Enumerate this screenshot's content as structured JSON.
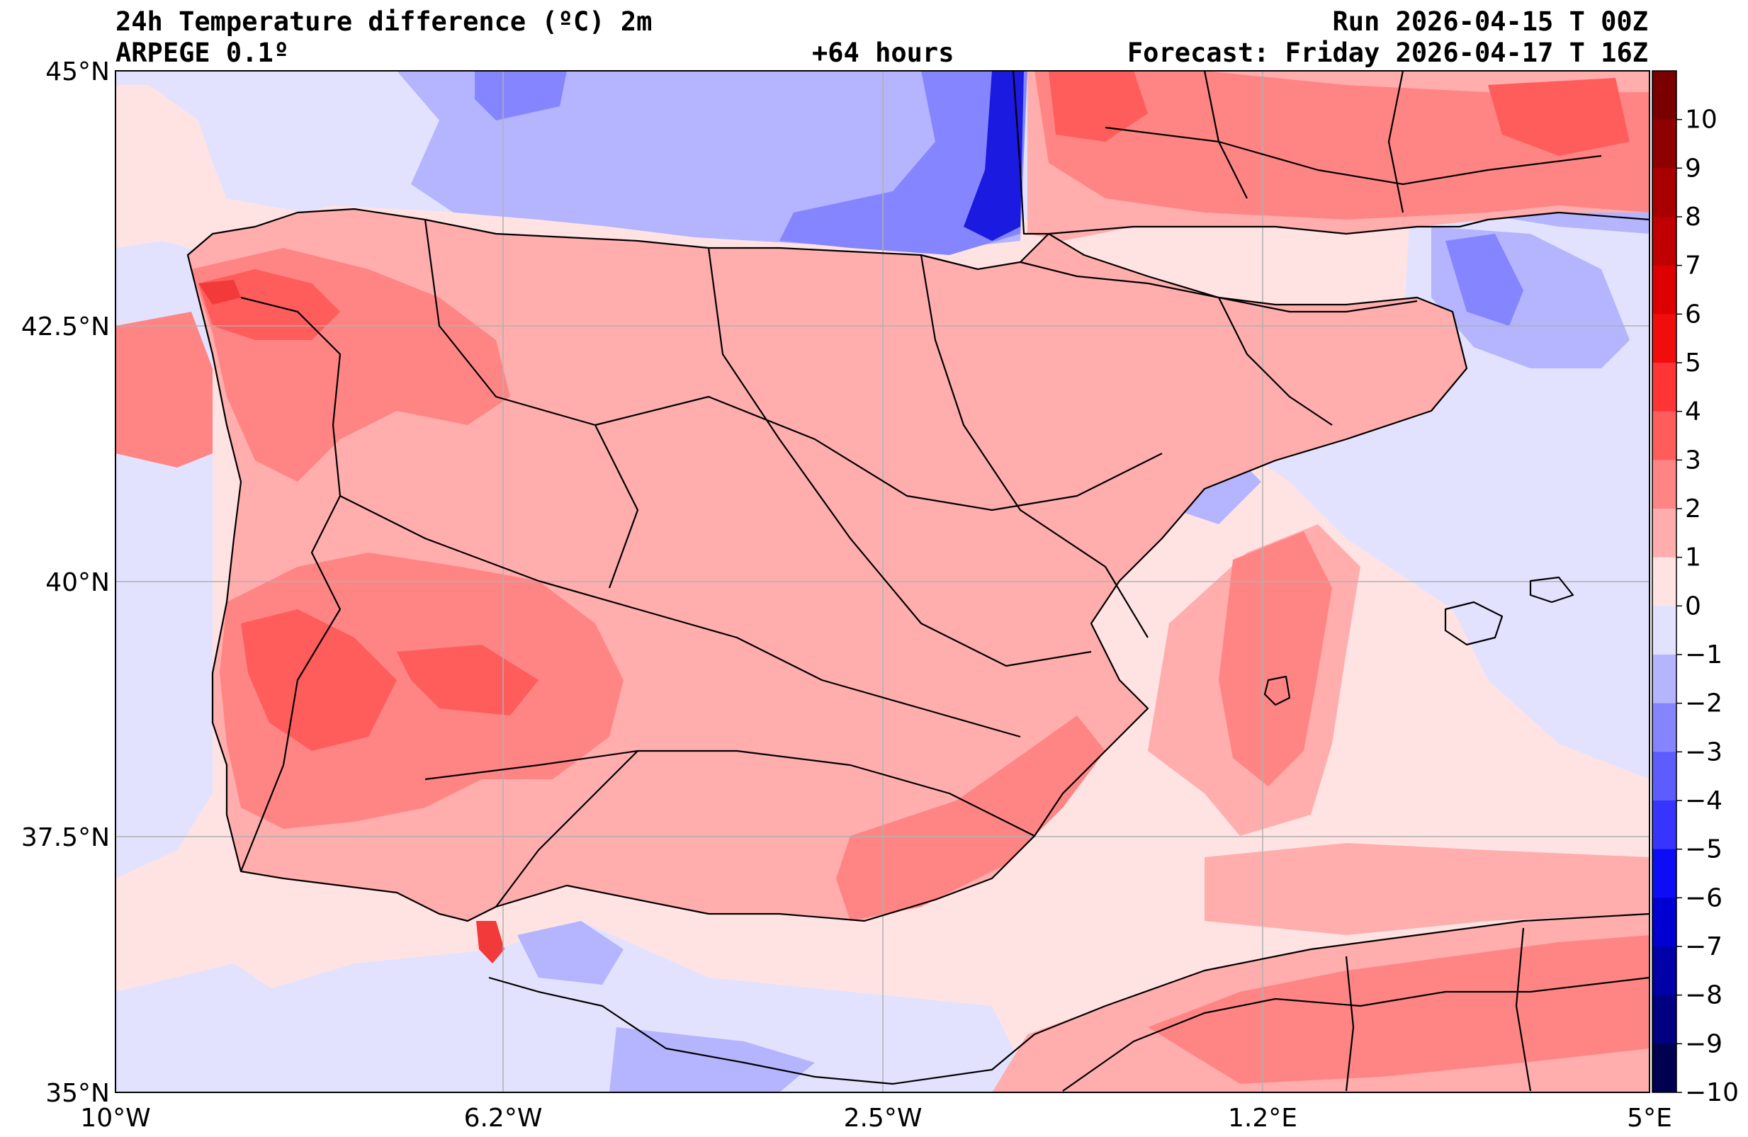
{
  "header": {
    "title": "24h Temperature difference (ºC) 2m",
    "model": "ARPEGE 0.1º",
    "lead_time": "+64 hours",
    "run": "Run 2026-04-15 T 00Z",
    "forecast": "Forecast: Friday 2026-04-17 T 16Z"
  },
  "axes": {
    "lat_labels": [
      "45°N",
      "42.5°N",
      "40°N",
      "37.5°N",
      "35°N"
    ],
    "lon_labels": [
      "10°W",
      "6.2°W",
      "2.5°W",
      "1.2°E",
      "5°E"
    ]
  },
  "colorbar": {
    "levels": [
      10,
      9,
      8,
      7,
      6,
      5,
      4,
      3,
      2,
      1,
      0,
      -1,
      -2,
      -3,
      -4,
      -5,
      -6,
      -7,
      -8,
      -9,
      -10
    ],
    "labels": [
      "10",
      "9",
      "8",
      "7",
      "6",
      "5",
      "4",
      "3",
      "2",
      "1",
      "0",
      "−1",
      "−2",
      "−3",
      "−4",
      "−5",
      "−6",
      "−7",
      "−8",
      "−9",
      "−10"
    ],
    "colors": [
      "#7a0000",
      "#8f0000",
      "#a80000",
      "#c00000",
      "#dd0000",
      "#f20d0d",
      "#ff3535",
      "#ff5c5c",
      "#ff8585",
      "#ffadad",
      "#ffe3e3",
      "#e2e2ff",
      "#b4b4ff",
      "#8585ff",
      "#5c5cff",
      "#3535ff",
      "#0d0df5",
      "#0000d0",
      "#0000a8",
      "#000080",
      "#000050"
    ]
  },
  "map": {
    "colors": {
      "land_warm": "#ffadad",
      "warm": "#ff8585",
      "hot": "#ff5c5c",
      "hottest": "#f23a3a",
      "sea_neutral": "#ffe3e3",
      "cool": "#e2e2ff",
      "cold": "#b4b4ff",
      "colder": "#8585ff",
      "coldest": "#1a1ae0",
      "border": "#000000",
      "grid": "#b0b0b0"
    }
  }
}
